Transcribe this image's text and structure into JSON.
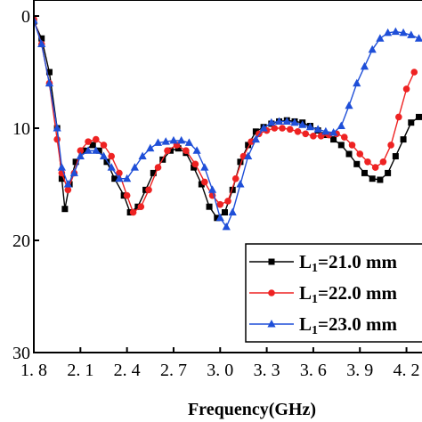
{
  "chart_data": {
    "type": "line",
    "xlabel": "Frequency(GHz)",
    "ylabel": "",
    "xlim": [
      1.8,
      4.3
    ],
    "ylim": [
      0,
      30
    ],
    "y_inverted": true,
    "x_tick_labels": [
      "1. 8",
      "2. 1",
      "2. 4",
      "2. 7",
      "3. 0",
      "3. 3",
      "3. 6",
      "3. 9",
      "4. 2"
    ],
    "x_tick_values": [
      1.8,
      2.1,
      2.4,
      2.7,
      3.0,
      3.3,
      3.6,
      3.9,
      4.2
    ],
    "y_tick_labels": [
      "0",
      "10",
      "20",
      "30"
    ],
    "y_tick_values": [
      0,
      10,
      20,
      30
    ],
    "grid": false,
    "legend_position": "bottom-right",
    "series": [
      {
        "name": "L₁=21.0 mm",
        "label_main": "L",
        "label_sub": "1",
        "label_rest": "=21.0 mm",
        "color": "#000000",
        "marker": "square",
        "x": [
          1.8,
          1.85,
          1.9,
          1.95,
          1.98,
          2.0,
          2.03,
          2.07,
          2.12,
          2.18,
          2.22,
          2.27,
          2.32,
          2.38,
          2.42,
          2.47,
          2.52,
          2.57,
          2.63,
          2.68,
          2.73,
          2.78,
          2.83,
          2.88,
          2.93,
          2.98,
          3.03,
          3.08,
          3.13,
          3.18,
          3.23,
          3.28,
          3.33,
          3.38,
          3.43,
          3.48,
          3.53,
          3.58,
          3.63,
          3.68,
          3.73,
          3.78,
          3.83,
          3.88,
          3.93,
          3.98,
          4.03,
          4.08,
          4.13,
          4.18,
          4.23,
          4.28
        ],
        "y": [
          0.5,
          2.0,
          5.0,
          10.0,
          14.5,
          17.2,
          15.0,
          13.0,
          12.0,
          11.5,
          12.0,
          13.0,
          14.5,
          16.0,
          17.5,
          17.0,
          15.5,
          14.0,
          12.8,
          12.0,
          11.8,
          12.2,
          13.5,
          15.0,
          17.0,
          18.0,
          17.5,
          15.5,
          13.0,
          11.5,
          10.3,
          9.9,
          9.6,
          9.4,
          9.3,
          9.4,
          9.5,
          9.8,
          10.2,
          10.6,
          11.0,
          11.5,
          12.3,
          13.2,
          14.0,
          14.5,
          14.6,
          14.0,
          12.5,
          11.0,
          9.5,
          9.0
        ]
      },
      {
        "name": "L₁=22.0 mm",
        "label_main": "L",
        "label_sub": "1",
        "label_rest": "=22.0 mm",
        "color": "#ee2222",
        "marker": "circle",
        "x": [
          1.8,
          1.85,
          1.9,
          1.95,
          1.98,
          2.02,
          2.06,
          2.1,
          2.15,
          2.2,
          2.25,
          2.3,
          2.35,
          2.4,
          2.44,
          2.49,
          2.54,
          2.6,
          2.66,
          2.72,
          2.78,
          2.84,
          2.9,
          2.95,
          3.0,
          3.05,
          3.1,
          3.15,
          3.2,
          3.25,
          3.3,
          3.35,
          3.4,
          3.45,
          3.5,
          3.55,
          3.6,
          3.65,
          3.7,
          3.75,
          3.8,
          3.85,
          3.9,
          3.95,
          4.0,
          4.05,
          4.1,
          4.15,
          4.2,
          4.25
        ],
        "y": [
          0.3,
          2.5,
          6.0,
          11.0,
          14.0,
          15.5,
          14.0,
          12.0,
          11.2,
          11.0,
          11.5,
          12.5,
          14.0,
          16.0,
          17.5,
          17.0,
          15.5,
          13.5,
          12.0,
          11.5,
          12.0,
          13.2,
          14.8,
          16.0,
          16.8,
          16.5,
          14.5,
          12.5,
          11.2,
          10.5,
          10.2,
          10.0,
          10.0,
          10.1,
          10.3,
          10.5,
          10.7,
          10.7,
          10.6,
          10.5,
          10.8,
          11.5,
          12.3,
          13.0,
          13.5,
          13.0,
          11.5,
          9.0,
          6.5,
          5.0
        ]
      },
      {
        "name": "L₁=23.0 mm",
        "label_main": "L",
        "label_sub": "1",
        "label_rest": "=23.0 mm",
        "color": "#1f4fd8",
        "marker": "triangle",
        "x": [
          1.8,
          1.85,
          1.9,
          1.95,
          1.98,
          2.02,
          2.06,
          2.1,
          2.15,
          2.2,
          2.25,
          2.3,
          2.35,
          2.4,
          2.45,
          2.5,
          2.55,
          2.6,
          2.65,
          2.7,
          2.75,
          2.8,
          2.85,
          2.9,
          2.95,
          3.0,
          3.04,
          3.08,
          3.13,
          3.18,
          3.23,
          3.28,
          3.33,
          3.38,
          3.43,
          3.48,
          3.53,
          3.58,
          3.63,
          3.68,
          3.73,
          3.78,
          3.83,
          3.88,
          3.93,
          3.98,
          4.03,
          4.08,
          4.13,
          4.18,
          4.23,
          4.28
        ],
        "y": [
          0.4,
          2.5,
          6.0,
          10.0,
          13.5,
          15.0,
          14.0,
          12.5,
          12.0,
          12.0,
          12.5,
          13.5,
          14.5,
          14.5,
          13.5,
          12.5,
          11.8,
          11.3,
          11.2,
          11.1,
          11.1,
          11.3,
          12.0,
          13.5,
          15.5,
          18.0,
          18.8,
          17.5,
          15.0,
          12.5,
          11.0,
          10.0,
          9.5,
          9.4,
          9.4,
          9.5,
          9.7,
          9.9,
          10.1,
          10.3,
          10.4,
          9.8,
          8.0,
          6.0,
          4.5,
          3.0,
          2.0,
          1.5,
          1.4,
          1.5,
          1.7,
          2.0
        ]
      }
    ]
  }
}
